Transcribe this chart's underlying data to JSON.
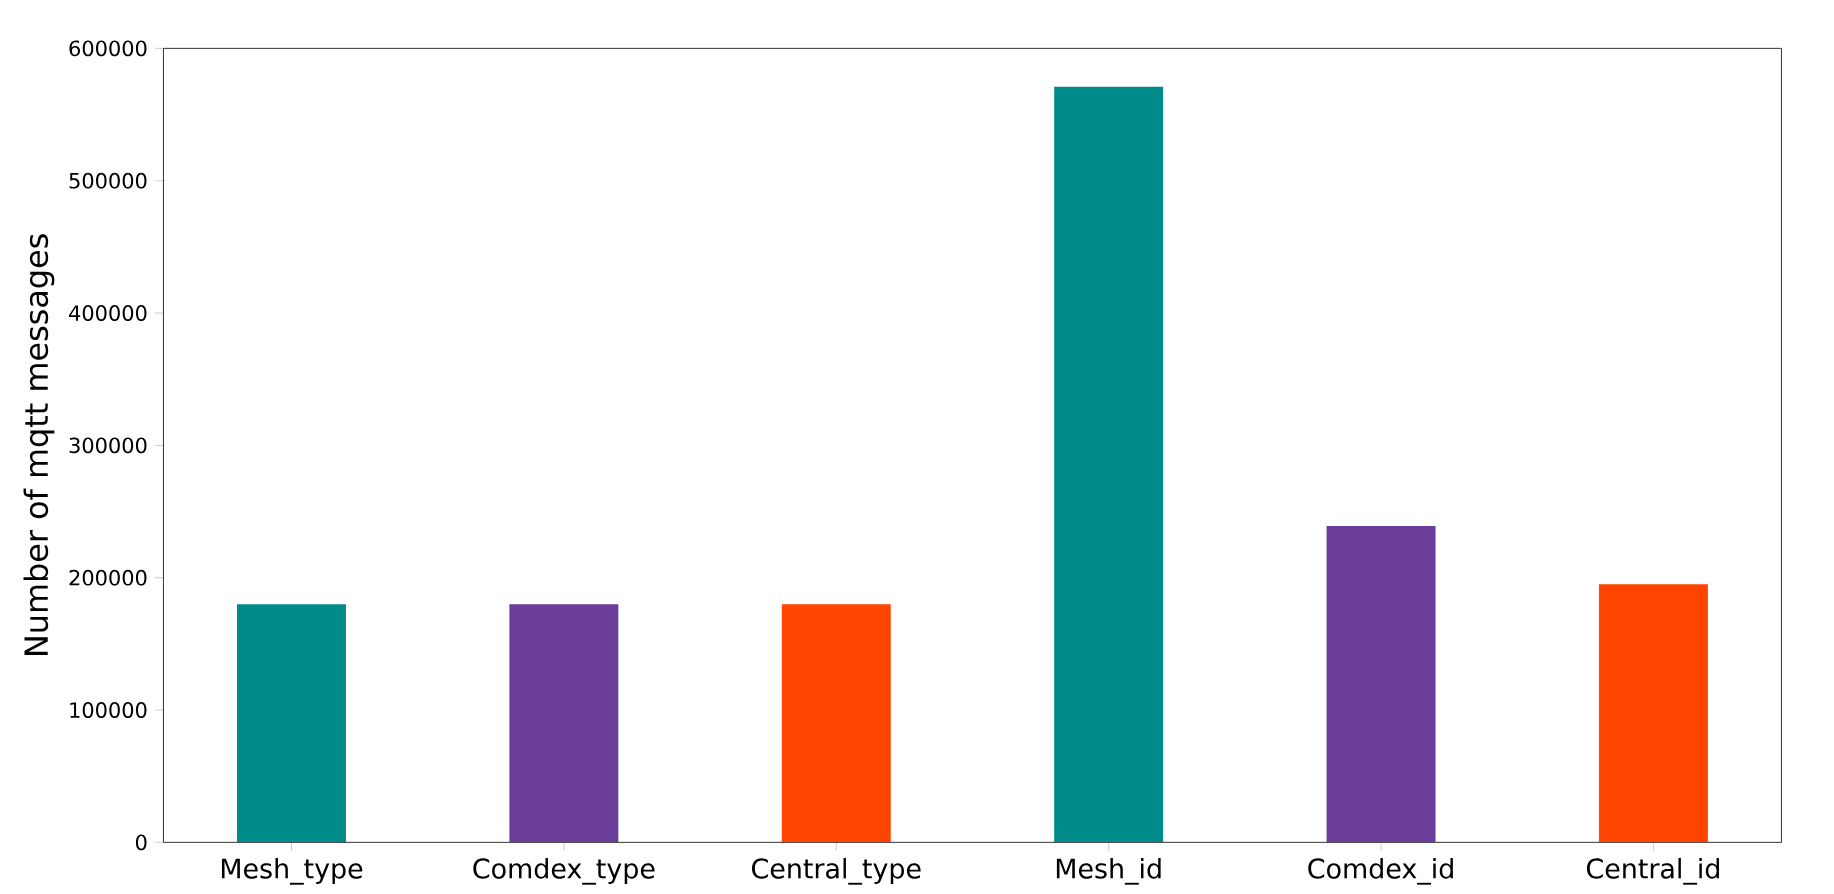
{
  "chart_data": {
    "type": "bar",
    "ylabel": "Number of mqtt messages",
    "categories": [
      "Mesh_type",
      "Comdex_type",
      "Central_type",
      "Mesh_id",
      "Comdex_id",
      "Central_id"
    ],
    "values": [
      180000,
      180000,
      180000,
      571000,
      239000,
      195000
    ],
    "colors": [
      "#008b8b",
      "#6a3d9a",
      "#ff4500",
      "#008b8b",
      "#6a3d9a",
      "#ff4500"
    ],
    "ylim": [
      0,
      600000
    ],
    "yticks": [
      0,
      100000,
      200000,
      300000,
      400000,
      500000,
      600000
    ],
    "grid": false
  }
}
